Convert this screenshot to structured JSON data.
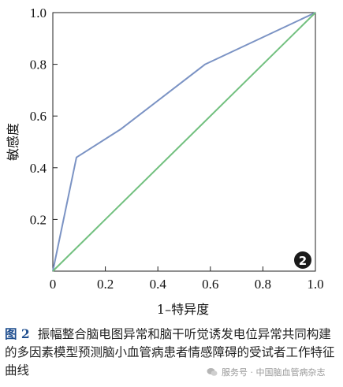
{
  "chart_data": {
    "type": "line",
    "title": "",
    "xlabel": "1–特异度",
    "ylabel": "敏感度",
    "xlim": [
      0,
      1.0
    ],
    "ylim": [
      0,
      1.0
    ],
    "x_ticks": [
      "0",
      "0.2",
      "0.4",
      "0.6",
      "0.8",
      "1.0"
    ],
    "y_ticks": [
      "0.2",
      "0.4",
      "0.6",
      "0.8",
      "1.0"
    ],
    "grid": false,
    "series": [
      {
        "color": "#7b93c4",
        "x": [
          0,
          0.09,
          0.26,
          0.58,
          1.0
        ],
        "y": [
          0,
          0.44,
          0.55,
          0.8,
          1.0
        ]
      },
      {
        "color": "#72c07f",
        "x": [
          0,
          1.0
        ],
        "y": [
          0,
          1.0
        ]
      }
    ],
    "badge": "2"
  },
  "caption": {
    "label": "图 2",
    "text": "振幅整合脑电图异常和脑干听觉诱发电位异常共同构建的多因素模型预测脑小血管病患者情感障碍的受试者工作特征曲线"
  },
  "watermark": {
    "text": "服务号 · 中国脑血管病杂志"
  }
}
